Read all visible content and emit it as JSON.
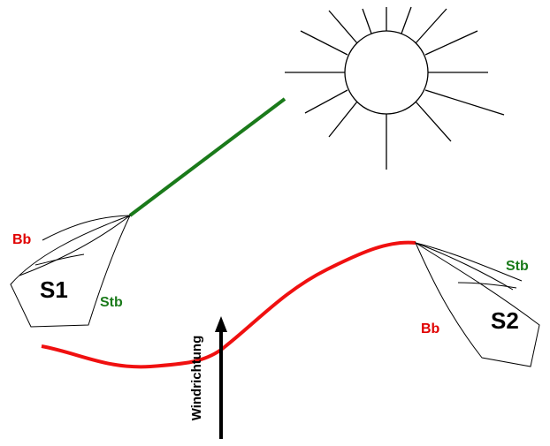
{
  "boats": [
    {
      "label": "S1",
      "port": "Bb",
      "starboard": "Stb"
    },
    {
      "label": "S2",
      "port": "Bb",
      "starboard": "Stb"
    }
  ],
  "wind_label": "Windrichtung"
}
